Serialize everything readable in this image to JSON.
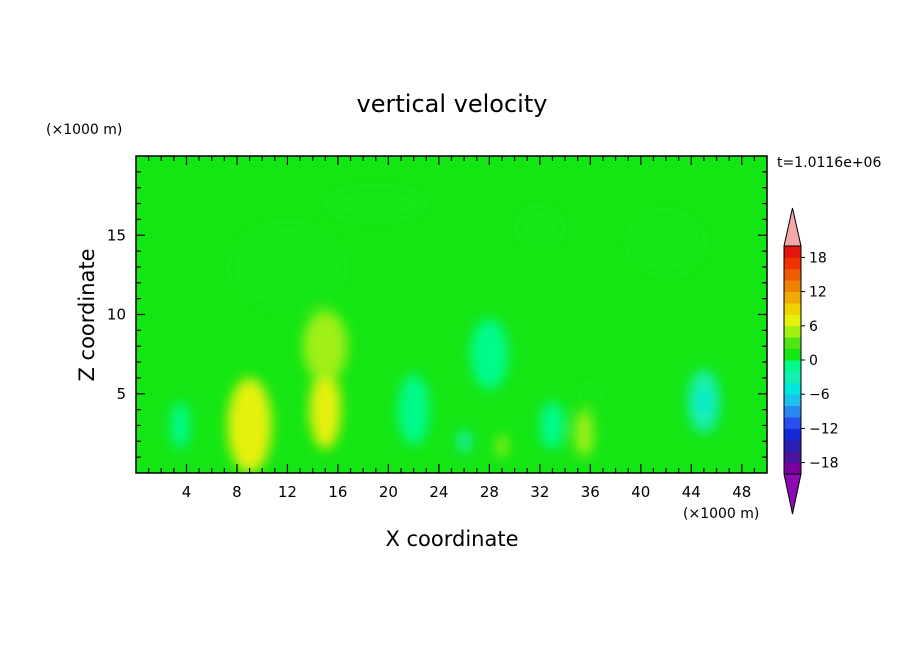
{
  "chart_data": {
    "type": "heatmap",
    "title": "vertical velocity",
    "xlabel": "X coordinate",
    "ylabel": "Z coordinate",
    "x_unit_label": "(×1000 m)",
    "y_unit_label": "(×1000 m)",
    "time_label": "t=1.0116e+06",
    "xlim": [
      0,
      50
    ],
    "ylim": [
      0,
      20
    ],
    "x_ticks": [
      4,
      8,
      12,
      16,
      20,
      24,
      28,
      32,
      36,
      40,
      44,
      48
    ],
    "y_ticks": [
      5,
      10,
      15
    ],
    "colorbar": {
      "min": -20,
      "max": 20,
      "step": 2,
      "tick_labels": [
        "18",
        "12",
        "6",
        "0",
        "−6",
        "−12",
        "−18"
      ],
      "tick_values": [
        18,
        12,
        6,
        0,
        -6,
        -12,
        -18
      ],
      "colors": [
        "#7a00a0",
        "#4a149a",
        "#2820b4",
        "#1428d8",
        "#2850f0",
        "#2a88f2",
        "#1ec0ee",
        "#00e6dc",
        "#14f0b4",
        "#00fa8c",
        "#14e614",
        "#50e614",
        "#a0f014",
        "#e6f00a",
        "#f0d200",
        "#f0aa00",
        "#f08200",
        "#f05a00",
        "#f03200",
        "#e6140a"
      ],
      "over_color": "#f4a8a8",
      "under_color": "#8c0ab4"
    },
    "features": [
      {
        "x": 9.0,
        "z": 3.0,
        "w": 3.5,
        "d": 6.0,
        "value": 7
      },
      {
        "x": 15.0,
        "z": 4.0,
        "w": 2.5,
        "d": 5.0,
        "value": 6
      },
      {
        "x": 15.0,
        "z": 8.0,
        "w": 3.5,
        "d": 4.5,
        "value": 4
      },
      {
        "x": 12.0,
        "z": 13.0,
        "w": 9.0,
        "d": 5.5,
        "value": 0.5
      },
      {
        "x": 19.0,
        "z": 17.0,
        "w": 8.0,
        "d": 2.0,
        "value": 0.4
      },
      {
        "x": 29.0,
        "z": 1.7,
        "w": 0.8,
        "d": 1.5,
        "value": 5
      },
      {
        "x": 35.5,
        "z": 2.5,
        "w": 1.5,
        "d": 3.0,
        "value": 4
      },
      {
        "x": 36.0,
        "z": 5.0,
        "w": 1.5,
        "d": 1.5,
        "value": 1
      },
      {
        "x": 42.0,
        "z": 14.5,
        "w": 6.0,
        "d": 4.0,
        "value": 0.5
      },
      {
        "x": 32.0,
        "z": 15.5,
        "w": 3.5,
        "d": 2.5,
        "value": 0.5
      },
      {
        "x": 45.0,
        "z": 4.5,
        "w": 2.5,
        "d": 4.0,
        "value": -4
      },
      {
        "x": 45.0,
        "z": 4.5,
        "w": 0.8,
        "d": 1.5,
        "value": -6
      },
      {
        "x": 22.0,
        "z": 4.0,
        "w": 2.5,
        "d": 4.5,
        "value": -2
      },
      {
        "x": 28.0,
        "z": 7.5,
        "w": 3.0,
        "d": 4.5,
        "value": -2
      },
      {
        "x": 26.0,
        "z": 2.0,
        "w": 1.0,
        "d": 1.5,
        "value": -4
      },
      {
        "x": 3.5,
        "z": 3.0,
        "w": 1.5,
        "d": 3.0,
        "value": -2
      },
      {
        "x": 33.0,
        "z": 3.0,
        "w": 2.0,
        "d": 3.0,
        "value": -2
      }
    ]
  }
}
